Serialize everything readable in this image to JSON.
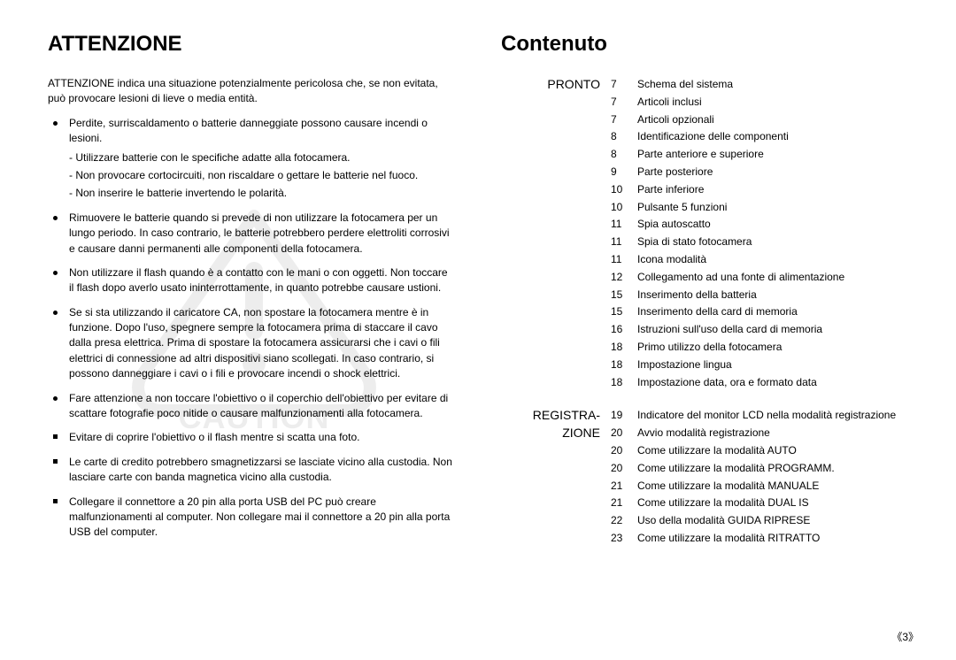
{
  "page_number": "《3》",
  "left": {
    "heading": "ATTENZIONE",
    "intro": "ATTENZIONE indica una situazione potenzialmente pericolosa che, se non evitata, può provocare lesioni di lieve o media entità.",
    "watermark_text": "CAUTION",
    "bullets": [
      {
        "text": "Perdite, surriscaldamento o batterie danneggiate possono causare incendi o lesioni.",
        "sub": [
          "Utilizzare batterie con le specifiche adatte alla fotocamera.",
          "Non provocare cortocircuiti, non riscaldare o gettare le batterie nel fuoco.",
          "Non inserire le batterie invertendo le polarità."
        ]
      },
      {
        "text": "Rimuovere le batterie quando si prevede di non utilizzare la fotocamera per un lungo periodo.  In caso contrario, le batterie potrebbero perdere elettroliti corrosivi e causare danni permanenti alle componenti della fotocamera."
      },
      {
        "text": "Non utilizzare il flash quando è a contatto con le mani o con oggetti. Non toccare il flash dopo averlo usato ininterrottamente, in quanto potrebbe causare ustioni."
      },
      {
        "text": "Se si sta utilizzando il caricatore CA, non spostare la fotocamera mentre è in funzione.   Dopo l'uso, spegnere sempre la fotocamera prima di staccare il cavo dalla presa elettrica.   Prima di spostare la fotocamera assicurarsi che i cavi o fili elettrici di connessione ad altri dispositivi siano scollegati.  In caso contrario, si possono danneggiare i cavi o i fili e provocare incendi o shock elettrici."
      },
      {
        "text": "Fare attenzione a non toccare l'obiettivo o il coperchio dell'obiettivo per evitare di scattare fotografie poco nitide o causare malfunzionamenti alla fotocamera."
      }
    ],
    "bullets2": [
      {
        "text": "Evitare di coprire l'obiettivo o il flash mentre si scatta una foto."
      },
      {
        "text": "Le carte di credito potrebbero smagnetizzarsi se lasciate vicino alla custodia. Non lasciare carte con banda magnetica vicino alla custodia."
      },
      {
        "text": "Collegare il connettore a 20 pin alla porta USB del PC può creare malfunzionamenti al computer. Non collegare mai il connettore a 20 pin alla porta USB del computer."
      }
    ]
  },
  "right": {
    "heading": "Contenuto",
    "sections": [
      {
        "title": "PRONTO",
        "items": [
          {
            "page": "7",
            "title": "Schema del sistema"
          },
          {
            "page": "7",
            "title": "Articoli inclusi"
          },
          {
            "page": "7",
            "title": "Articoli opzionali"
          },
          {
            "page": "8",
            "title": "Identificazione delle componenti"
          },
          {
            "page": "8",
            "title": "Parte anteriore e superiore"
          },
          {
            "page": "9",
            "title": "Parte posteriore"
          },
          {
            "page": "10",
            "title": "Parte inferiore"
          },
          {
            "page": "10",
            "title": "Pulsante 5 funzioni"
          },
          {
            "page": "11",
            "title": "Spia autoscatto"
          },
          {
            "page": "11",
            "title": "Spia di stato fotocamera"
          },
          {
            "page": "11",
            "title": "Icona modalità"
          },
          {
            "page": "12",
            "title": "Collegamento ad una fonte di alimentazione"
          },
          {
            "page": "15",
            "title": "Inserimento della batteria"
          },
          {
            "page": "15",
            "title": "Inserimento della card di memoria"
          },
          {
            "page": "16",
            "title": "Istruzioni sull'uso della card di memoria"
          },
          {
            "page": "18",
            "title": "Primo utilizzo della fotocamera"
          },
          {
            "page": "18",
            "title": "Impostazione lingua"
          },
          {
            "page": "18",
            "title": "Impostazione data, ora e formato data"
          }
        ]
      },
      {
        "title": "REGISTRA- ZIONE",
        "items": [
          {
            "page": "19",
            "title": "Indicatore del monitor LCD nella modalità registrazione"
          },
          {
            "page": "20",
            "title": "Avvio modalità registrazione"
          },
          {
            "page": "20",
            "title": "Come utilizzare la modalità AUTO"
          },
          {
            "page": "20",
            "title": "Come utilizzare la modalità  PROGRAMM."
          },
          {
            "page": "21",
            "title": "Come utilizzare la modalità MANUALE"
          },
          {
            "page": "21",
            "title": "Come utilizzare la modalità DUAL IS"
          },
          {
            "page": "22",
            "title": "Uso della modalità GUIDA RIPRESE"
          },
          {
            "page": "23",
            "title": "Come utilizzare la modalità RITRATTO"
          }
        ]
      }
    ]
  }
}
